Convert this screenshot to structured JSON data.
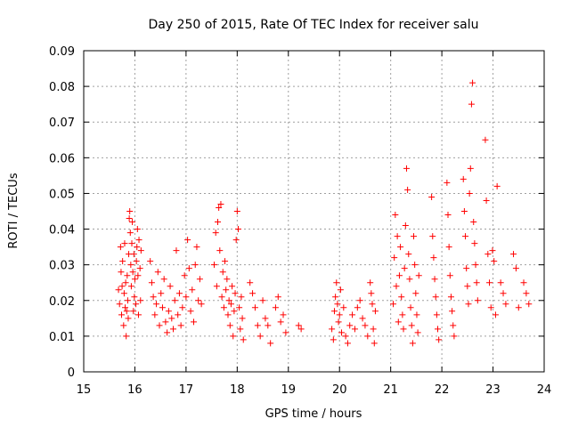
{
  "chart_data": {
    "type": "scatter",
    "title": "Day 250 of 2015, Rate Of TEC Index for receiver salu",
    "xlabel": "GPS time / hours",
    "ylabel": "ROTI / TECUs",
    "xlim": [
      15,
      24
    ],
    "ylim": [
      0,
      0.09
    ],
    "xticks": [
      "15",
      "16",
      "17",
      "18",
      "19",
      "20",
      "21",
      "22",
      "23",
      "24"
    ],
    "yticks": [
      "0",
      "0.01",
      "0.02",
      "0.03",
      "0.04",
      "0.05",
      "0.06",
      "0.07",
      "0.08",
      "0.09"
    ],
    "grid": true,
    "marker": "plus",
    "series": [
      {
        "name": "ROTI",
        "color": "#ff0000",
        "points": [
          [
            15.68,
            0.023
          ],
          [
            15.7,
            0.019
          ],
          [
            15.72,
            0.035
          ],
          [
            15.73,
            0.028
          ],
          [
            15.74,
            0.016
          ],
          [
            15.75,
            0.024
          ],
          [
            15.76,
            0.031
          ],
          [
            15.78,
            0.013
          ],
          [
            15.79,
            0.022
          ],
          [
            15.8,
            0.036
          ],
          [
            15.81,
            0.018
          ],
          [
            15.82,
            0.025
          ],
          [
            15.83,
            0.01
          ],
          [
            15.84,
            0.017
          ],
          [
            15.85,
            0.027
          ],
          [
            15.86,
            0.02
          ],
          [
            15.87,
            0.015
          ],
          [
            15.88,
            0.033
          ],
          [
            15.89,
            0.043
          ],
          [
            15.9,
            0.045
          ],
          [
            15.91,
            0.039
          ],
          [
            15.92,
            0.03
          ],
          [
            15.93,
            0.024
          ],
          [
            15.94,
            0.036
          ],
          [
            15.95,
            0.042
          ],
          [
            15.96,
            0.028
          ],
          [
            15.97,
            0.017
          ],
          [
            15.98,
            0.033
          ],
          [
            15.99,
            0.021
          ],
          [
            16.0,
            0.026
          ],
          [
            16.02,
            0.019
          ],
          [
            16.03,
            0.031
          ],
          [
            16.04,
            0.035
          ],
          [
            16.05,
            0.04
          ],
          [
            16.06,
            0.027
          ],
          [
            16.07,
            0.016
          ],
          [
            16.08,
            0.037
          ],
          [
            16.1,
            0.029
          ],
          [
            16.11,
            0.02
          ],
          [
            16.12,
            0.034
          ],
          [
            16.3,
            0.031
          ],
          [
            16.33,
            0.025
          ],
          [
            16.36,
            0.021
          ],
          [
            16.39,
            0.016
          ],
          [
            16.42,
            0.019
          ],
          [
            16.45,
            0.028
          ],
          [
            16.48,
            0.013
          ],
          [
            16.51,
            0.022
          ],
          [
            16.54,
            0.018
          ],
          [
            16.57,
            0.026
          ],
          [
            16.6,
            0.014
          ],
          [
            16.63,
            0.011
          ],
          [
            16.66,
            0.017
          ],
          [
            16.69,
            0.024
          ],
          [
            16.72,
            0.015
          ],
          [
            16.75,
            0.012
          ],
          [
            16.78,
            0.02
          ],
          [
            16.81,
            0.034
          ],
          [
            16.84,
            0.016
          ],
          [
            16.87,
            0.022
          ],
          [
            16.9,
            0.013
          ],
          [
            16.93,
            0.018
          ],
          [
            16.97,
            0.027
          ],
          [
            17.0,
            0.021
          ],
          [
            17.03,
            0.037
          ],
          [
            17.06,
            0.029
          ],
          [
            17.09,
            0.017
          ],
          [
            17.12,
            0.023
          ],
          [
            17.15,
            0.014
          ],
          [
            17.18,
            0.03
          ],
          [
            17.21,
            0.035
          ],
          [
            17.24,
            0.02
          ],
          [
            17.27,
            0.026
          ],
          [
            17.3,
            0.019
          ],
          [
            17.55,
            0.03
          ],
          [
            17.58,
            0.039
          ],
          [
            17.6,
            0.024
          ],
          [
            17.62,
            0.042
          ],
          [
            17.64,
            0.046
          ],
          [
            17.66,
            0.034
          ],
          [
            17.68,
            0.047
          ],
          [
            17.7,
            0.021
          ],
          [
            17.72,
            0.028
          ],
          [
            17.74,
            0.018
          ],
          [
            17.76,
            0.031
          ],
          [
            17.78,
            0.023
          ],
          [
            17.8,
            0.026
          ],
          [
            17.82,
            0.016
          ],
          [
            17.84,
            0.02
          ],
          [
            17.86,
            0.013
          ],
          [
            17.88,
            0.019
          ],
          [
            17.9,
            0.024
          ],
          [
            17.92,
            0.01
          ],
          [
            17.94,
            0.017
          ],
          [
            17.96,
            0.022
          ],
          [
            17.98,
            0.037
          ],
          [
            18.0,
            0.045
          ],
          [
            18.02,
            0.04
          ],
          [
            18.04,
            0.018
          ],
          [
            18.06,
            0.012
          ],
          [
            18.08,
            0.021
          ],
          [
            18.1,
            0.015
          ],
          [
            18.12,
            0.009
          ],
          [
            18.25,
            0.025
          ],
          [
            18.3,
            0.022
          ],
          [
            18.35,
            0.018
          ],
          [
            18.4,
            0.013
          ],
          [
            18.45,
            0.01
          ],
          [
            18.5,
            0.02
          ],
          [
            18.55,
            0.015
          ],
          [
            18.6,
            0.013
          ],
          [
            18.65,
            0.008
          ],
          [
            18.75,
            0.018
          ],
          [
            18.8,
            0.021
          ],
          [
            18.85,
            0.014
          ],
          [
            18.9,
            0.016
          ],
          [
            18.95,
            0.011
          ],
          [
            19.2,
            0.013
          ],
          [
            19.25,
            0.012
          ],
          [
            19.85,
            0.012
          ],
          [
            19.88,
            0.009
          ],
          [
            19.9,
            0.017
          ],
          [
            19.92,
            0.021
          ],
          [
            19.94,
            0.025
          ],
          [
            19.96,
            0.019
          ],
          [
            19.98,
            0.014
          ],
          [
            20.0,
            0.016
          ],
          [
            20.02,
            0.023
          ],
          [
            20.04,
            0.011
          ],
          [
            20.08,
            0.018
          ],
          [
            20.12,
            0.01
          ],
          [
            20.16,
            0.008
          ],
          [
            20.2,
            0.013
          ],
          [
            20.25,
            0.016
          ],
          [
            20.3,
            0.012
          ],
          [
            20.35,
            0.018
          ],
          [
            20.4,
            0.02
          ],
          [
            20.45,
            0.015
          ],
          [
            20.5,
            0.013
          ],
          [
            20.55,
            0.01
          ],
          [
            20.6,
            0.025
          ],
          [
            20.62,
            0.022
          ],
          [
            20.64,
            0.019
          ],
          [
            20.66,
            0.012
          ],
          [
            20.68,
            0.008
          ],
          [
            20.7,
            0.017
          ],
          [
            21.05,
            0.019
          ],
          [
            21.07,
            0.032
          ],
          [
            21.09,
            0.044
          ],
          [
            21.11,
            0.024
          ],
          [
            21.13,
            0.038
          ],
          [
            21.15,
            0.014
          ],
          [
            21.17,
            0.027
          ],
          [
            21.19,
            0.035
          ],
          [
            21.21,
            0.021
          ],
          [
            21.23,
            0.016
          ],
          [
            21.25,
            0.012
          ],
          [
            21.27,
            0.029
          ],
          [
            21.29,
            0.041
          ],
          [
            21.31,
            0.057
          ],
          [
            21.33,
            0.051
          ],
          [
            21.35,
            0.033
          ],
          [
            21.37,
            0.026
          ],
          [
            21.39,
            0.018
          ],
          [
            21.41,
            0.013
          ],
          [
            21.43,
            0.008
          ],
          [
            21.45,
            0.038
          ],
          [
            21.47,
            0.03
          ],
          [
            21.49,
            0.022
          ],
          [
            21.51,
            0.016
          ],
          [
            21.53,
            0.011
          ],
          [
            21.55,
            0.027
          ],
          [
            21.8,
            0.049
          ],
          [
            21.82,
            0.038
          ],
          [
            21.84,
            0.032
          ],
          [
            21.86,
            0.026
          ],
          [
            21.88,
            0.021
          ],
          [
            21.9,
            0.016
          ],
          [
            21.92,
            0.012
          ],
          [
            21.94,
            0.009
          ],
          [
            22.1,
            0.053
          ],
          [
            22.12,
            0.044
          ],
          [
            22.14,
            0.035
          ],
          [
            22.16,
            0.027
          ],
          [
            22.18,
            0.021
          ],
          [
            22.2,
            0.017
          ],
          [
            22.22,
            0.013
          ],
          [
            22.24,
            0.01
          ],
          [
            22.42,
            0.054
          ],
          [
            22.44,
            0.045
          ],
          [
            22.46,
            0.038
          ],
          [
            22.48,
            0.029
          ],
          [
            22.5,
            0.024
          ],
          [
            22.52,
            0.019
          ],
          [
            22.54,
            0.05
          ],
          [
            22.56,
            0.057
          ],
          [
            22.58,
            0.075
          ],
          [
            22.6,
            0.081
          ],
          [
            22.62,
            0.042
          ],
          [
            22.64,
            0.036
          ],
          [
            22.66,
            0.03
          ],
          [
            22.68,
            0.025
          ],
          [
            22.7,
            0.02
          ],
          [
            22.85,
            0.065
          ],
          [
            22.87,
            0.048
          ],
          [
            22.9,
            0.033
          ],
          [
            22.93,
            0.025
          ],
          [
            22.96,
            0.018
          ],
          [
            22.99,
            0.034
          ],
          [
            23.02,
            0.031
          ],
          [
            23.05,
            0.016
          ],
          [
            23.08,
            0.052
          ],
          [
            23.15,
            0.025
          ],
          [
            23.2,
            0.022
          ],
          [
            23.25,
            0.019
          ],
          [
            23.4,
            0.033
          ],
          [
            23.45,
            0.029
          ],
          [
            23.5,
            0.018
          ],
          [
            23.6,
            0.025
          ],
          [
            23.65,
            0.022
          ],
          [
            23.7,
            0.019
          ]
        ]
      }
    ]
  }
}
